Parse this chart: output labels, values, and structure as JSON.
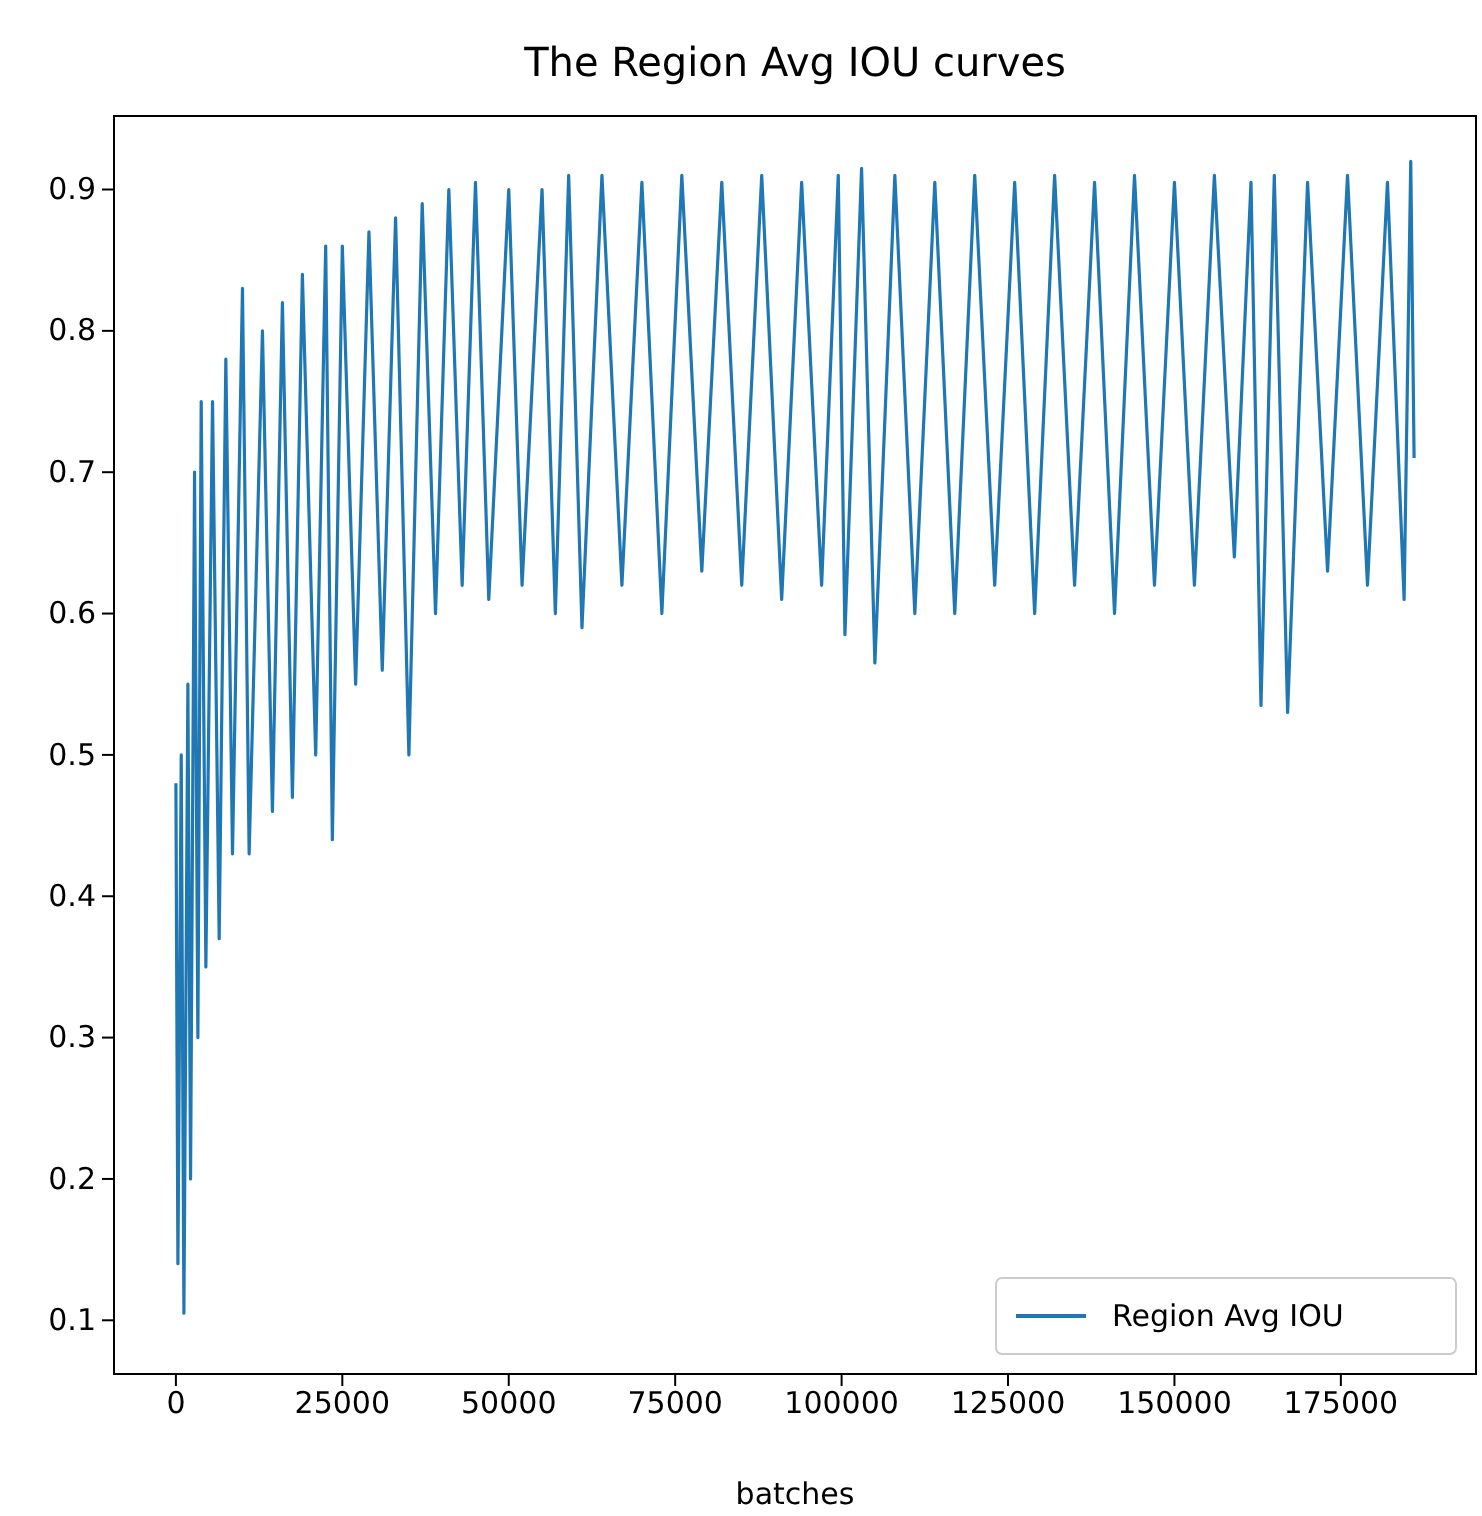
{
  "chart_data": {
    "type": "line",
    "title": "The Region Avg IOU curves",
    "xlabel": "batches",
    "xlim": [
      -9300,
      195300
    ],
    "ylim": [
      0.062,
      0.952
    ],
    "xticks": [
      0,
      25000,
      50000,
      75000,
      100000,
      125000,
      150000,
      175000
    ],
    "yticks": [
      0.1,
      0.2,
      0.3,
      0.4,
      0.5,
      0.6,
      0.7,
      0.8,
      0.9
    ],
    "legend": "bottom right",
    "grid": false,
    "series": [
      {
        "name": "Region Avg IOU",
        "color": "#1f77b4",
        "x": [
          0,
          300,
          800,
          1200,
          1800,
          2200,
          2800,
          3300,
          3800,
          4500,
          5500,
          6500,
          7500,
          8500,
          10000,
          11000,
          13000,
          14500,
          16000,
          17500,
          19000,
          21000,
          22500,
          23500,
          25000,
          27000,
          29000,
          31000,
          33000,
          35000,
          37000,
          39000,
          41000,
          43000,
          45000,
          47000,
          50000,
          52000,
          55000,
          57000,
          59000,
          61000,
          64000,
          67000,
          70000,
          73000,
          76000,
          79000,
          82000,
          85000,
          88000,
          91000,
          94000,
          97000,
          99500,
          100500,
          103000,
          105000,
          108000,
          111000,
          114000,
          117000,
          120000,
          123000,
          126000,
          129000,
          132000,
          135000,
          138000,
          141000,
          144000,
          147000,
          150000,
          153000,
          156000,
          159000,
          161500,
          163000,
          165000,
          167000,
          170000,
          173000,
          176000,
          179000,
          182000,
          184500,
          185500,
          186000
        ],
        "values": [
          0.48,
          0.14,
          0.5,
          0.105,
          0.55,
          0.2,
          0.7,
          0.3,
          0.75,
          0.35,
          0.75,
          0.37,
          0.78,
          0.43,
          0.83,
          0.43,
          0.8,
          0.46,
          0.82,
          0.47,
          0.84,
          0.5,
          0.86,
          0.44,
          0.86,
          0.55,
          0.87,
          0.56,
          0.88,
          0.5,
          0.89,
          0.6,
          0.9,
          0.62,
          0.905,
          0.61,
          0.9,
          0.62,
          0.9,
          0.6,
          0.91,
          0.59,
          0.91,
          0.62,
          0.905,
          0.6,
          0.91,
          0.63,
          0.905,
          0.62,
          0.91,
          0.61,
          0.905,
          0.62,
          0.91,
          0.585,
          0.915,
          0.565,
          0.91,
          0.6,
          0.905,
          0.6,
          0.91,
          0.62,
          0.905,
          0.6,
          0.91,
          0.62,
          0.905,
          0.6,
          0.91,
          0.62,
          0.905,
          0.62,
          0.91,
          0.64,
          0.905,
          0.535,
          0.91,
          0.53,
          0.905,
          0.63,
          0.91,
          0.62,
          0.905,
          0.61,
          0.92,
          0.71
        ]
      }
    ]
  }
}
